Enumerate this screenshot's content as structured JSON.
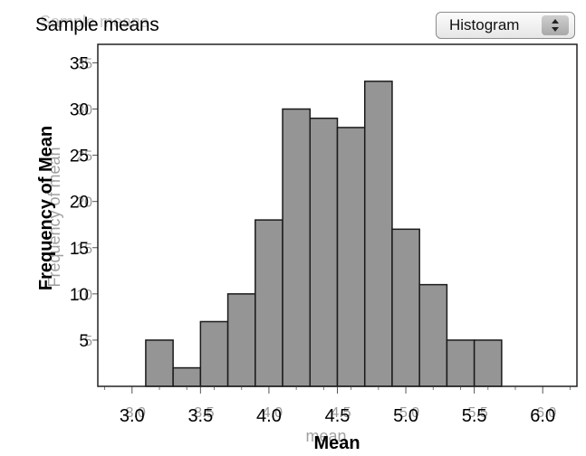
{
  "window": {
    "title": "Sample means",
    "view_selector": {
      "selected": "Histogram",
      "arrows_icon": "up-down-arrows-icon"
    }
  },
  "chart_data": {
    "type": "bar",
    "title": "",
    "xlabel": "Mean",
    "xlabel_ghost": "mean",
    "ylabel": "Frequency of Mean",
    "ylabel_ghost": "Frequency of mean",
    "bin_width": 0.2,
    "bins": [
      {
        "start": 3.1,
        "end": 3.3,
        "count": 5
      },
      {
        "start": 3.3,
        "end": 3.5,
        "count": 2
      },
      {
        "start": 3.5,
        "end": 3.7,
        "count": 7
      },
      {
        "start": 3.7,
        "end": 3.9,
        "count": 10
      },
      {
        "start": 3.9,
        "end": 4.1,
        "count": 18
      },
      {
        "start": 4.1,
        "end": 4.3,
        "count": 30
      },
      {
        "start": 4.3,
        "end": 4.5,
        "count": 29
      },
      {
        "start": 4.5,
        "end": 4.7,
        "count": 28
      },
      {
        "start": 4.7,
        "end": 4.9,
        "count": 33
      },
      {
        "start": 4.9,
        "end": 5.1,
        "count": 17
      },
      {
        "start": 5.1,
        "end": 5.3,
        "count": 11
      },
      {
        "start": 5.3,
        "end": 5.5,
        "count": 5
      },
      {
        "start": 5.5,
        "end": 5.7,
        "count": 5
      }
    ],
    "xlim": [
      2.75,
      6.25
    ],
    "ylim": [
      0,
      37
    ],
    "x_ticks": [
      "3.0",
      "3.5",
      "4.0",
      "4.5",
      "5.0",
      "5.5",
      "6.0"
    ],
    "x_tick_values": [
      3.0,
      3.5,
      4.0,
      4.5,
      5.0,
      5.5,
      6.0
    ],
    "x_minor_tick_values": [
      2.8,
      3.2,
      3.4,
      3.6,
      3.8,
      4.2,
      4.4,
      4.6,
      4.8,
      5.2,
      5.4,
      5.6,
      5.8,
      6.2
    ],
    "y_ticks": [
      "5",
      "10",
      "15",
      "20",
      "25",
      "30",
      "35"
    ],
    "y_tick_values": [
      5,
      10,
      15,
      20,
      25,
      30,
      35
    ],
    "grid": false,
    "legend": "none",
    "colors": {
      "bar_fill": "#959595",
      "bar_stroke": "#1a1a1a",
      "frame": "#222222"
    }
  }
}
